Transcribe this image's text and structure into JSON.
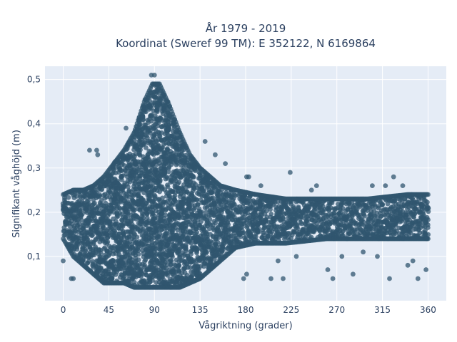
{
  "chart_data": {
    "type": "scatter",
    "title_line1": "År 1979 - 2019",
    "title_line2": "Koordinat (Sweref 99 TM): E 352122, N 6169864",
    "xlabel": "Vågriktning (grader)",
    "ylabel": "Signifikant våghöjd (m)",
    "xlim": [
      -18,
      378
    ],
    "ylim": [
      0.0,
      0.53
    ],
    "xticks": [
      0,
      45,
      90,
      135,
      180,
      225,
      270,
      315,
      360
    ],
    "xtick_labels": [
      "0",
      "45",
      "90",
      "135",
      "180",
      "225",
      "270",
      "315",
      "360"
    ],
    "yticks": [
      0.1,
      0.2,
      0.3,
      0.4,
      0.5
    ],
    "ytick_labels": [
      "0,1",
      "0,2",
      "0,3",
      "0,4",
      "0,5"
    ],
    "grid": true,
    "legend": "none",
    "marker_color": "#30566f",
    "plot_background": "#e5ecf6",
    "density_envelope": [
      {
        "x": 0,
        "y_low": 0.14,
        "y_high": 0.24
      },
      {
        "x": 10,
        "y_low": 0.1,
        "y_high": 0.25
      },
      {
        "x": 20,
        "y_low": 0.08,
        "y_high": 0.25
      },
      {
        "x": 30,
        "y_low": 0.06,
        "y_high": 0.26
      },
      {
        "x": 40,
        "y_low": 0.04,
        "y_high": 0.28
      },
      {
        "x": 50,
        "y_low": 0.04,
        "y_high": 0.31
      },
      {
        "x": 60,
        "y_low": 0.04,
        "y_high": 0.34
      },
      {
        "x": 70,
        "y_low": 0.03,
        "y_high": 0.38
      },
      {
        "x": 80,
        "y_low": 0.03,
        "y_high": 0.45
      },
      {
        "x": 88,
        "y_low": 0.03,
        "y_high": 0.49
      },
      {
        "x": 95,
        "y_low": 0.03,
        "y_high": 0.49
      },
      {
        "x": 105,
        "y_low": 0.03,
        "y_high": 0.44
      },
      {
        "x": 115,
        "y_low": 0.03,
        "y_high": 0.38
      },
      {
        "x": 125,
        "y_low": 0.04,
        "y_high": 0.33
      },
      {
        "x": 135,
        "y_low": 0.05,
        "y_high": 0.3
      },
      {
        "x": 145,
        "y_low": 0.07,
        "y_high": 0.28
      },
      {
        "x": 155,
        "y_low": 0.09,
        "y_high": 0.26
      },
      {
        "x": 170,
        "y_low": 0.12,
        "y_high": 0.25
      },
      {
        "x": 190,
        "y_low": 0.13,
        "y_high": 0.24
      },
      {
        "x": 220,
        "y_low": 0.13,
        "y_high": 0.23
      },
      {
        "x": 260,
        "y_low": 0.14,
        "y_high": 0.23
      },
      {
        "x": 300,
        "y_low": 0.14,
        "y_high": 0.23
      },
      {
        "x": 340,
        "y_low": 0.14,
        "y_high": 0.24
      },
      {
        "x": 360,
        "y_low": 0.14,
        "y_high": 0.24
      }
    ],
    "outliers": [
      {
        "x": 0,
        "y": 0.09
      },
      {
        "x": 8,
        "y": 0.05
      },
      {
        "x": 10,
        "y": 0.05
      },
      {
        "x": 26,
        "y": 0.34
      },
      {
        "x": 33,
        "y": 0.34
      },
      {
        "x": 34,
        "y": 0.33
      },
      {
        "x": 62,
        "y": 0.39
      },
      {
        "x": 87,
        "y": 0.51
      },
      {
        "x": 90,
        "y": 0.51
      },
      {
        "x": 140,
        "y": 0.36
      },
      {
        "x": 150,
        "y": 0.33
      },
      {
        "x": 160,
        "y": 0.31
      },
      {
        "x": 181,
        "y": 0.28
      },
      {
        "x": 183,
        "y": 0.28
      },
      {
        "x": 195,
        "y": 0.26
      },
      {
        "x": 178,
        "y": 0.05
      },
      {
        "x": 181,
        "y": 0.06
      },
      {
        "x": 205,
        "y": 0.05
      },
      {
        "x": 217,
        "y": 0.05
      },
      {
        "x": 224,
        "y": 0.29
      },
      {
        "x": 245,
        "y": 0.25
      },
      {
        "x": 250,
        "y": 0.26
      },
      {
        "x": 261,
        "y": 0.07
      },
      {
        "x": 266,
        "y": 0.05
      },
      {
        "x": 286,
        "y": 0.06
      },
      {
        "x": 305,
        "y": 0.26
      },
      {
        "x": 318,
        "y": 0.26
      },
      {
        "x": 322,
        "y": 0.05
      },
      {
        "x": 326,
        "y": 0.28
      },
      {
        "x": 335,
        "y": 0.26
      },
      {
        "x": 340,
        "y": 0.08
      },
      {
        "x": 350,
        "y": 0.05
      },
      {
        "x": 358,
        "y": 0.07
      },
      {
        "x": 212,
        "y": 0.09
      },
      {
        "x": 230,
        "y": 0.1
      },
      {
        "x": 275,
        "y": 0.1
      },
      {
        "x": 296,
        "y": 0.11
      },
      {
        "x": 310,
        "y": 0.1
      },
      {
        "x": 345,
        "y": 0.09
      }
    ]
  }
}
